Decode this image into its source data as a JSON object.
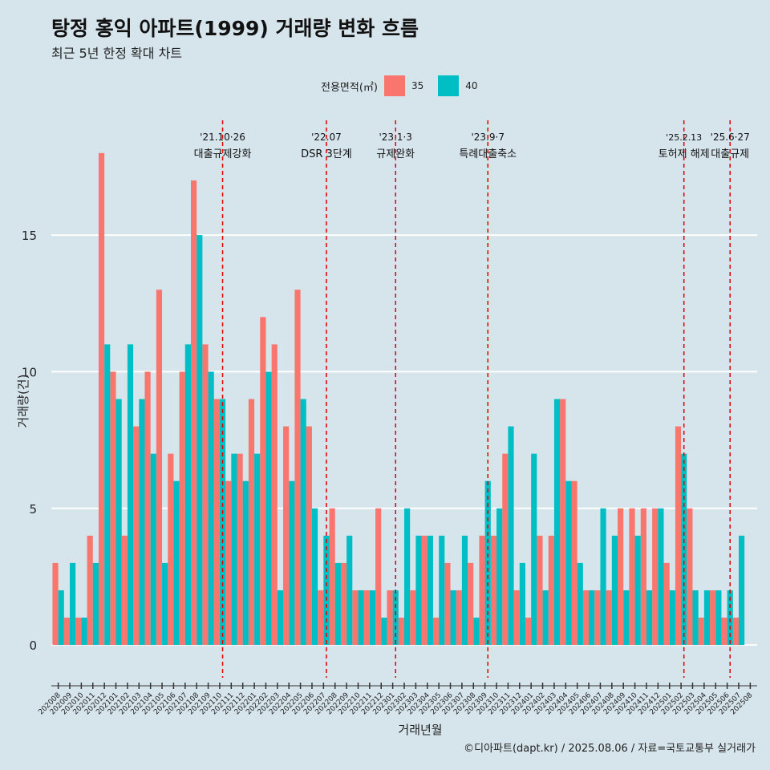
{
  "title": "탕정 홍익 아파트(1999) 거래량 변화 흐름",
  "subtitle": "최근 5년 한정 확대 차트",
  "caption": "©디아파트(dapt.kr) / 2025.08.06 / 자료=국토교통부 실거래가",
  "legend": {
    "title": "전용면적(㎡)",
    "items": [
      {
        "label": "35",
        "color": "#f8766d"
      },
      {
        "label": "40",
        "color": "#00bfc4"
      }
    ]
  },
  "chart_data": {
    "type": "bar",
    "xlabel": "거래년월",
    "ylabel": "거래량(건)",
    "ylim": [
      -1.2,
      19.2
    ],
    "yticks": [
      0,
      5,
      10,
      15
    ],
    "categories": [
      "202008",
      "202009",
      "202010",
      "202011",
      "202012",
      "202101",
      "202102",
      "202103",
      "202104",
      "202105",
      "202106",
      "202107",
      "202108",
      "202109",
      "202110",
      "202111",
      "202112",
      "202201",
      "202202",
      "202203",
      "202204",
      "202205",
      "202206",
      "202207",
      "202208",
      "202209",
      "202210",
      "202211",
      "202212",
      "202301",
      "202302",
      "202303",
      "202304",
      "202305",
      "202306",
      "202307",
      "202308",
      "202309",
      "202310",
      "202311",
      "202312",
      "202401",
      "202402",
      "202403",
      "202404",
      "202405",
      "202406",
      "202407",
      "202408",
      "202409",
      "202410",
      "202411",
      "202412",
      "202501",
      "202502",
      "202503",
      "202504",
      "202505",
      "202506",
      "202507",
      "202508"
    ],
    "series": [
      {
        "name": "35",
        "color": "#f8766d",
        "values": [
          3,
          1,
          1,
          4,
          18,
          10,
          4,
          8,
          10,
          13,
          7,
          10,
          17,
          11,
          9,
          6,
          7,
          9,
          12,
          11,
          8,
          13,
          8,
          2,
          5,
          3,
          2,
          2,
          5,
          2,
          1,
          2,
          4,
          1,
          3,
          2,
          3,
          4,
          4,
          7,
          2,
          1,
          4,
          4,
          9,
          6,
          2,
          2,
          2,
          5,
          5,
          5,
          5,
          3,
          8,
          5,
          1,
          2,
          1,
          1,
          null
        ]
      },
      {
        "name": "40",
        "color": "#00bfc4",
        "values": [
          2,
          3,
          1,
          3,
          11,
          9,
          11,
          9,
          7,
          3,
          6,
          11,
          15,
          10,
          9,
          7,
          6,
          7,
          10,
          2,
          6,
          9,
          5,
          4,
          3,
          4,
          2,
          2,
          1,
          2,
          5,
          4,
          4,
          4,
          2,
          4,
          1,
          6,
          5,
          8,
          3,
          7,
          2,
          9,
          6,
          3,
          2,
          5,
          4,
          2,
          4,
          2,
          5,
          2,
          7,
          2,
          2,
          2,
          2,
          4,
          null
        ]
      }
    ],
    "annotations": [
      {
        "index": 14,
        "date": "'21.10·26",
        "text": "대출규제강화"
      },
      {
        "index": 23,
        "date": "'22.07",
        "text": "DSR 3단계"
      },
      {
        "index": 29,
        "date": "'23.1·3",
        "text": "규제완화"
      },
      {
        "index": 37,
        "date": "'23.9·7",
        "text": "특례대출축소"
      },
      {
        "index": 54,
        "date": "'25.2.13",
        "text": "토허제 해제"
      },
      {
        "index": 58,
        "date": "'25.6·27",
        "text": "대출규제"
      }
    ]
  }
}
